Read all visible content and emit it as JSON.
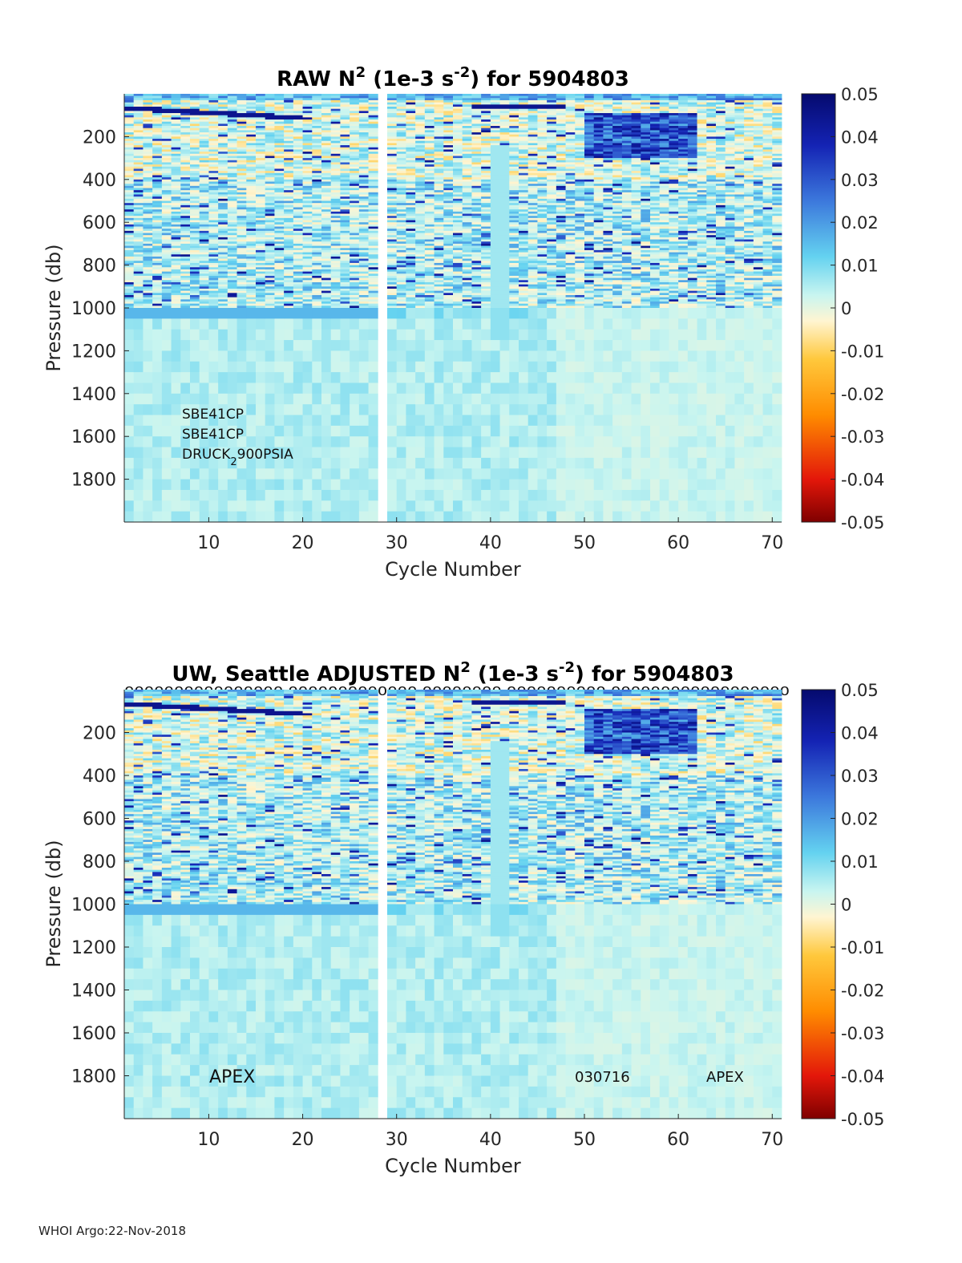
{
  "footer": "WHOI Argo:22-Nov-2018",
  "colorbar": {
    "ticks": [
      "0.05",
      "0.04",
      "0.03",
      "0.02",
      "0.01",
      "0",
      "-0.01",
      "-0.02",
      "-0.03",
      "-0.04",
      "-0.05"
    ],
    "range": [
      -0.05,
      0.05
    ],
    "colormap": [
      "#7f0000",
      "#e3170a",
      "#ff8c00",
      "#ffc83c",
      "#fff5d2",
      "#c8f5f0",
      "#64d2f0",
      "#3c78dc",
      "#1423b4",
      "#050a6e"
    ]
  },
  "chart_data": [
    {
      "type": "heatmap",
      "title_main": "RAW N",
      "title_sup": "2",
      "title_mid": " (1e-3 s",
      "title_sup2": "-2",
      "title_end": ") for 5904803",
      "title": "RAW N^2 (1e-3 s^-2) for 5904803",
      "xlabel": "Cycle Number",
      "ylabel": "Pressure (db)",
      "xlim": [
        1,
        71
      ],
      "ylim": [
        0,
        2000
      ],
      "xticks": [
        "10",
        "20",
        "30",
        "40",
        "50",
        "60",
        "70"
      ],
      "yticks": [
        "200",
        "400",
        "600",
        "800",
        "1000",
        "1200",
        "1400",
        "1600",
        "1800"
      ],
      "missing_cycles": [
        28
      ],
      "annotations": [
        "SBE41CP",
        "SBE41CP",
        "DRUCK",
        "2",
        "900PSIA"
      ],
      "flags": ""
    },
    {
      "type": "heatmap",
      "title_main": "UW, Seattle  ADJUSTED N",
      "title_sup": "2",
      "title_mid": " (1e-3 s",
      "title_sup2": "-2",
      "title_end": ") for 5904803",
      "title": "UW, Seattle  ADJUSTED N^2 (1e-3 s^-2) for 5904803",
      "xlabel": "Cycle Number",
      "ylabel": "Pressure (db)",
      "xlim": [
        1,
        71
      ],
      "ylim": [
        0,
        2000
      ],
      "xticks": [
        "10",
        "20",
        "30",
        "40",
        "50",
        "60",
        "70"
      ],
      "yticks": [
        "200",
        "400",
        "600",
        "800",
        "1000",
        "1200",
        "1400",
        "1600",
        "1800"
      ],
      "missing_cycles": [
        28
      ],
      "annotations": [
        "APEX",
        "030716",
        "APEX"
      ],
      "flags": "0000000000000000  0000000000000  00000000  0000000000  000000000000000000"
    }
  ]
}
